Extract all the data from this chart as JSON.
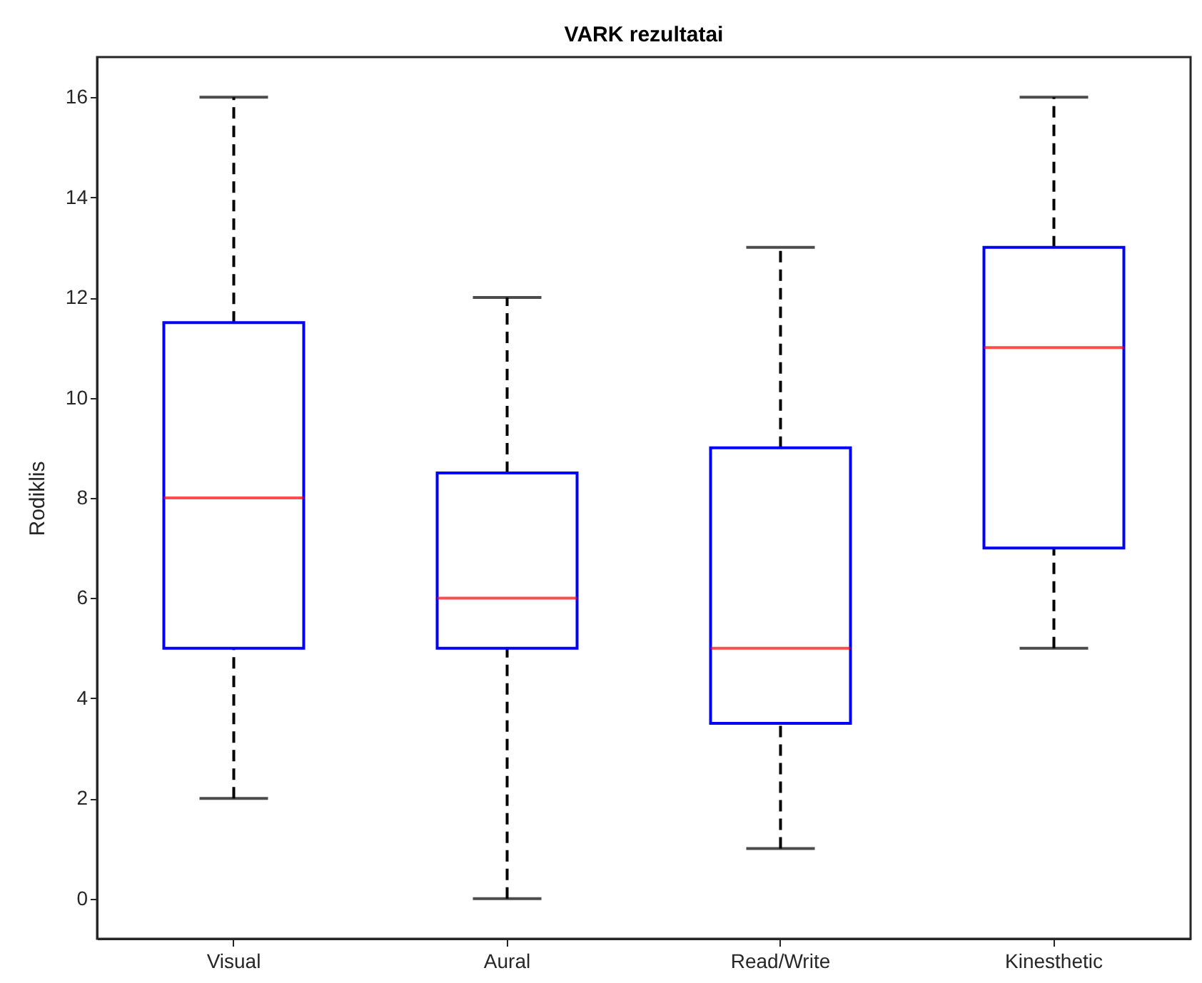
{
  "chart_data": {
    "type": "box",
    "title": "VARK rezultatai",
    "ylabel": "Rodiklis",
    "categories": [
      "Visual",
      "Aural",
      "Read/Write",
      "Kinesthetic"
    ],
    "ylim": [
      -0.8,
      16.8
    ],
    "yticks": [
      0,
      2,
      4,
      6,
      8,
      10,
      12,
      14,
      16
    ],
    "grid": false,
    "series": [
      {
        "color": "#0000ff",
        "boxes": [
          {
            "low": 2,
            "q1": 5,
            "median": 8,
            "q3": 11.5,
            "high": 16
          },
          {
            "low": 0,
            "q1": 5,
            "median": 6,
            "q3": 8.5,
            "high": 12
          },
          {
            "low": 1,
            "q1": 3.5,
            "median": 5,
            "q3": 9,
            "high": 13
          },
          {
            "low": 5,
            "q1": 7,
            "median": 11,
            "q3": 13,
            "high": 16
          }
        ]
      }
    ]
  }
}
